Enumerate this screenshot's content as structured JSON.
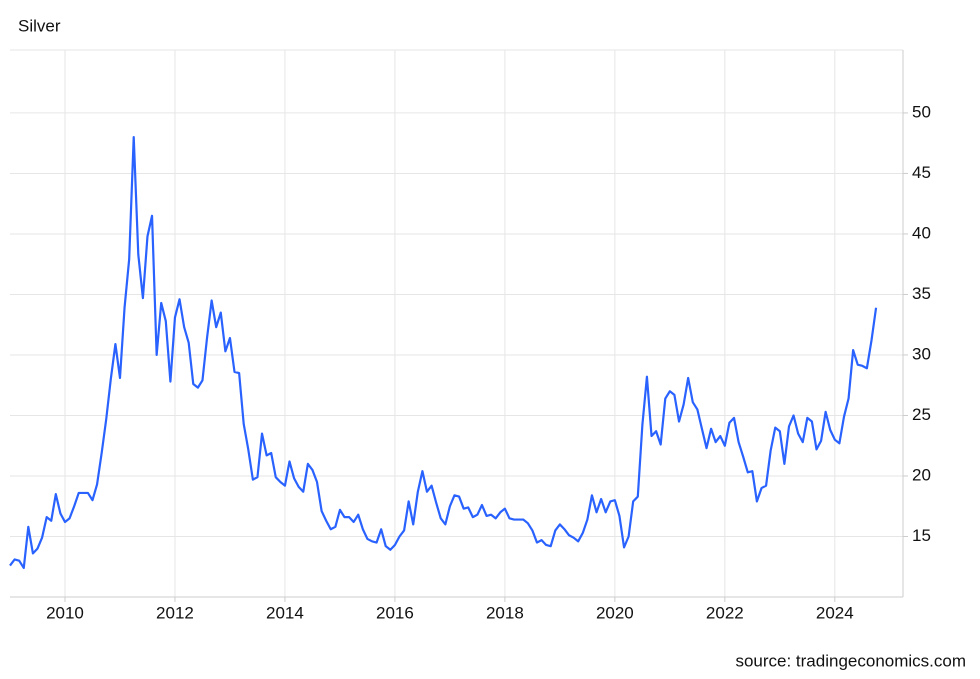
{
  "chart_data": {
    "type": "line",
    "title": "Silver",
    "source": "source: tradingeconomics.com",
    "color": "#2962ff",
    "grid": true,
    "xlim": [
      2009,
      2025.24
    ],
    "xticks": [
      2010,
      2012,
      2014,
      2016,
      2018,
      2020,
      2022,
      2024
    ],
    "ylim": [
      10,
      55.2
    ],
    "yticks": [
      15,
      20,
      25,
      30,
      35,
      40,
      45,
      50
    ],
    "x": [
      2009,
      2009.083,
      2009.167,
      2009.25,
      2009.333,
      2009.417,
      2009.5,
      2009.583,
      2009.667,
      2009.75,
      2009.833,
      2009.917,
      2010,
      2010.083,
      2010.167,
      2010.25,
      2010.333,
      2010.417,
      2010.5,
      2010.583,
      2010.667,
      2010.75,
      2010.833,
      2010.917,
      2011,
      2011.083,
      2011.167,
      2011.25,
      2011.333,
      2011.417,
      2011.5,
      2011.583,
      2011.667,
      2011.75,
      2011.833,
      2011.917,
      2012,
      2012.083,
      2012.167,
      2012.25,
      2012.333,
      2012.417,
      2012.5,
      2012.583,
      2012.667,
      2012.75,
      2012.833,
      2012.917,
      2013,
      2013.083,
      2013.167,
      2013.25,
      2013.333,
      2013.417,
      2013.5,
      2013.583,
      2013.667,
      2013.75,
      2013.833,
      2013.917,
      2014,
      2014.083,
      2014.167,
      2014.25,
      2014.333,
      2014.417,
      2014.5,
      2014.583,
      2014.667,
      2014.75,
      2014.833,
      2014.917,
      2015,
      2015.083,
      2015.167,
      2015.25,
      2015.333,
      2015.417,
      2015.5,
      2015.583,
      2015.667,
      2015.75,
      2015.833,
      2015.917,
      2016,
      2016.083,
      2016.167,
      2016.25,
      2016.333,
      2016.417,
      2016.5,
      2016.583,
      2016.667,
      2016.75,
      2016.833,
      2016.917,
      2017,
      2017.083,
      2017.167,
      2017.25,
      2017.333,
      2017.417,
      2017.5,
      2017.583,
      2017.667,
      2017.75,
      2017.833,
      2017.917,
      2018,
      2018.083,
      2018.167,
      2018.25,
      2018.333,
      2018.417,
      2018.5,
      2018.583,
      2018.667,
      2018.75,
      2018.833,
      2018.917,
      2019,
      2019.083,
      2019.167,
      2019.25,
      2019.333,
      2019.417,
      2019.5,
      2019.583,
      2019.667,
      2019.75,
      2019.833,
      2019.917,
      2020,
      2020.083,
      2020.167,
      2020.25,
      2020.333,
      2020.417,
      2020.5,
      2020.583,
      2020.667,
      2020.75,
      2020.833,
      2020.917,
      2021,
      2021.083,
      2021.167,
      2021.25,
      2021.333,
      2021.417,
      2021.5,
      2021.583,
      2021.667,
      2021.75,
      2021.833,
      2021.917,
      2022,
      2022.083,
      2022.167,
      2022.25,
      2022.333,
      2022.417,
      2022.5,
      2022.583,
      2022.667,
      2022.75,
      2022.833,
      2022.917,
      2023,
      2023.083,
      2023.167,
      2023.25,
      2023.333,
      2023.417,
      2023.5,
      2023.583,
      2023.667,
      2023.75,
      2023.833,
      2023.917,
      2024,
      2024.083,
      2024.167,
      2024.25,
      2024.333,
      2024.417,
      2024.5,
      2024.583,
      2024.667,
      2024.75
    ],
    "values": [
      12.6,
      13.1,
      13.0,
      12.4,
      15.8,
      13.6,
      14.0,
      14.9,
      16.6,
      16.3,
      18.5,
      16.9,
      16.2,
      16.5,
      17.5,
      18.6,
      18.6,
      18.6,
      18.0,
      19.3,
      21.9,
      24.7,
      28.0,
      30.9,
      28.1,
      33.9,
      37.9,
      48.0,
      38.3,
      34.7,
      39.8,
      41.5,
      30.0,
      34.3,
      32.8,
      27.8,
      33.1,
      34.6,
      32.3,
      31.0,
      27.6,
      27.3,
      27.9,
      31.4,
      34.5,
      32.3,
      33.5,
      30.3,
      31.4,
      28.6,
      28.5,
      24.3,
      22.2,
      19.7,
      19.9,
      23.5,
      21.7,
      21.9,
      19.9,
      19.5,
      19.2,
      21.2,
      19.8,
      19.1,
      18.7,
      21.0,
      20.5,
      19.5,
      17.1,
      16.3,
      15.6,
      15.8,
      17.2,
      16.6,
      16.6,
      16.2,
      16.8,
      15.6,
      14.8,
      14.6,
      14.5,
      15.6,
      14.2,
      13.9,
      14.3,
      15.0,
      15.5,
      17.9,
      16.0,
      18.7,
      20.4,
      18.7,
      19.2,
      17.8,
      16.5,
      16.0,
      17.5,
      18.4,
      18.3,
      17.3,
      17.4,
      16.6,
      16.8,
      17.6,
      16.7,
      16.8,
      16.5,
      17.0,
      17.3,
      16.5,
      16.4,
      16.4,
      16.4,
      16.1,
      15.5,
      14.5,
      14.7,
      14.3,
      14.2,
      15.5,
      16.0,
      15.6,
      15.1,
      14.9,
      14.6,
      15.3,
      16.4,
      18.4,
      17.0,
      18.1,
      17.0,
      17.9,
      18.0,
      16.7,
      14.1,
      15.0,
      17.9,
      18.3,
      24.2,
      28.2,
      23.3,
      23.7,
      22.6,
      26.4,
      27.0,
      26.7,
      24.5,
      25.9,
      28.1,
      26.1,
      25.5,
      23.9,
      22.3,
      23.9,
      22.8,
      23.3,
      22.5,
      24.4,
      24.8,
      22.8,
      21.6,
      20.3,
      20.4,
      17.9,
      19.0,
      19.2,
      22.1,
      24.0,
      23.7,
      21.0,
      24.1,
      25.0,
      23.5,
      22.8,
      24.8,
      24.5,
      22.2,
      22.9,
      25.3,
      23.8,
      23.0,
      22.7,
      24.9,
      26.4,
      30.4,
      29.2,
      29.1,
      28.9,
      31.2,
      33.9
    ]
  }
}
